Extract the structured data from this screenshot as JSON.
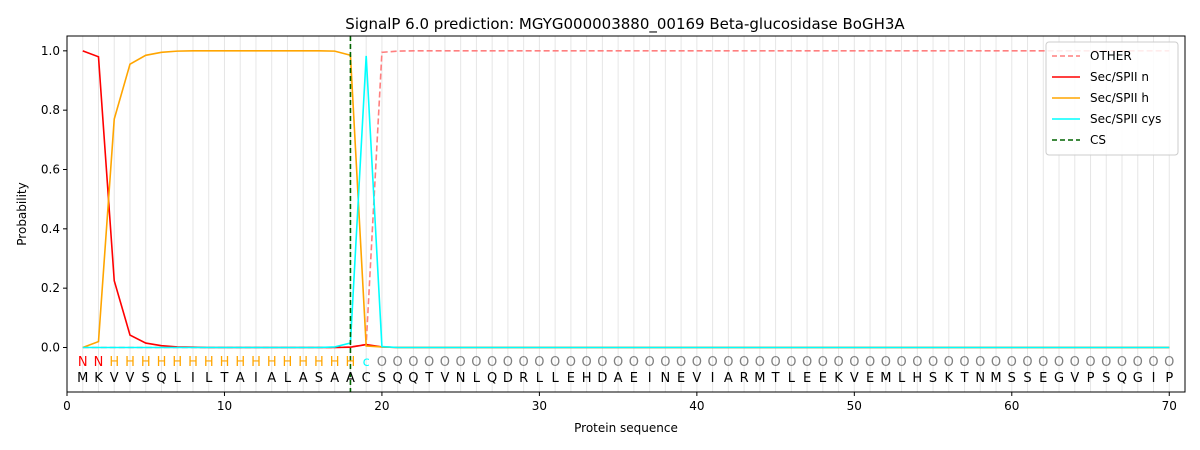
{
  "chart_data": {
    "type": "line",
    "title": "SignalP 6.0 prediction: MGYG000003880_00169 Beta-glucosidase BoGH3A",
    "xlabel": "Protein sequence",
    "ylabel": "Probability",
    "xlim": [
      0,
      71
    ],
    "ylim": [
      -0.15,
      1.05
    ],
    "xticks": [
      0,
      10,
      20,
      30,
      40,
      50,
      60,
      70
    ],
    "yticks": [
      0.0,
      0.2,
      0.4,
      0.6,
      0.8,
      1.0
    ],
    "grid": "vertical lines at each residue position",
    "legend_position": "top-right",
    "sequence": [
      "M",
      "K",
      "V",
      "V",
      "S",
      "Q",
      "L",
      "I",
      "L",
      "T",
      "A",
      "I",
      "A",
      "L",
      "A",
      "S",
      "A",
      "A",
      "C",
      "S",
      "Q",
      "Q",
      "T",
      "V",
      "N",
      "L",
      "Q",
      "D",
      "R",
      "L",
      "L",
      "E",
      "H",
      "D",
      "A",
      "E",
      "I",
      "N",
      "E",
      "V",
      "I",
      "A",
      "R",
      "M",
      "T",
      "L",
      "E",
      "E",
      "K",
      "V",
      "E",
      "M",
      "L",
      "H",
      "S",
      "K",
      "T",
      "N",
      "M",
      "S",
      "S",
      "E",
      "G",
      "V",
      "P",
      "S",
      "Q",
      "G",
      "I",
      "P"
    ],
    "annotation": [
      "N",
      "N",
      "H",
      "H",
      "H",
      "H",
      "H",
      "H",
      "H",
      "H",
      "H",
      "H",
      "H",
      "H",
      "H",
      "H",
      "H",
      "H",
      "c",
      "O",
      "O",
      "O",
      "O",
      "O",
      "O",
      "O",
      "O",
      "O",
      "O",
      "O",
      "O",
      "O",
      "O",
      "O",
      "O",
      "O",
      "O",
      "O",
      "O",
      "O",
      "O",
      "O",
      "O",
      "O",
      "O",
      "O",
      "O",
      "O",
      "O",
      "O",
      "O",
      "O",
      "O",
      "O",
      "O",
      "O",
      "O",
      "O",
      "O",
      "O",
      "O",
      "O",
      "O",
      "O",
      "O",
      "O",
      "O",
      "O",
      "O",
      "O"
    ],
    "annotation_colors": {
      "N": "#ff0000",
      "H": "#ffa500",
      "c": "#00ffff",
      "O": "#808080"
    },
    "cs_position": 18,
    "series": [
      {
        "name": "OTHER",
        "color": "#ff7f7f",
        "style": "dashed",
        "values": [
          0,
          0,
          0,
          0,
          0,
          0,
          0,
          0,
          0,
          0,
          0,
          0,
          0,
          0,
          0,
          0,
          0,
          0.002,
          0.01,
          0.995,
          0.999,
          1,
          1,
          1,
          1,
          1,
          1,
          1,
          1,
          1,
          1,
          1,
          1,
          1,
          1,
          1,
          1,
          1,
          1,
          1,
          1,
          1,
          1,
          1,
          1,
          1,
          1,
          1,
          1,
          1,
          1,
          1,
          1,
          1,
          1,
          1,
          1,
          1,
          1,
          1,
          1,
          1,
          1,
          1,
          1,
          1,
          1,
          1,
          1,
          1
        ]
      },
      {
        "name": "Sec/SPII n",
        "color": "#ff0000",
        "style": "solid",
        "values": [
          1.0,
          0.98,
          0.225,
          0.042,
          0.015,
          0.006,
          0.002,
          0.001,
          0,
          0,
          0,
          0,
          0,
          0,
          0,
          0,
          0,
          0.001,
          0.01,
          0.002,
          0,
          0,
          0,
          0,
          0,
          0,
          0,
          0,
          0,
          0,
          0,
          0,
          0,
          0,
          0,
          0,
          0,
          0,
          0,
          0,
          0,
          0,
          0,
          0,
          0,
          0,
          0,
          0,
          0,
          0,
          0,
          0,
          0,
          0,
          0,
          0,
          0,
          0,
          0,
          0,
          0,
          0,
          0,
          0,
          0,
          0,
          0,
          0,
          0,
          0
        ]
      },
      {
        "name": "Sec/SPII h",
        "color": "#ffa500",
        "style": "solid",
        "values": [
          0,
          0.02,
          0.77,
          0.955,
          0.985,
          0.995,
          0.999,
          1,
          1,
          1,
          1,
          1,
          1,
          1,
          1,
          1,
          0.999,
          0.985,
          0.005,
          0.002,
          0,
          0,
          0,
          0,
          0,
          0,
          0,
          0,
          0,
          0,
          0,
          0,
          0,
          0,
          0,
          0,
          0,
          0,
          0,
          0,
          0,
          0,
          0,
          0,
          0,
          0,
          0,
          0,
          0,
          0,
          0,
          0,
          0,
          0,
          0,
          0,
          0,
          0,
          0,
          0,
          0,
          0,
          0,
          0,
          0,
          0,
          0,
          0,
          0,
          0
        ]
      },
      {
        "name": "Sec/SPII cys",
        "color": "#00ffff",
        "style": "solid",
        "values": [
          0,
          0,
          0,
          0,
          0,
          0,
          0,
          0,
          0,
          0,
          0,
          0,
          0,
          0,
          0,
          0,
          0.002,
          0.015,
          0.983,
          0.003,
          0,
          0,
          0,
          0,
          0,
          0,
          0,
          0,
          0,
          0,
          0,
          0,
          0,
          0,
          0,
          0,
          0,
          0,
          0,
          0,
          0,
          0,
          0,
          0,
          0,
          0,
          0,
          0,
          0,
          0,
          0,
          0,
          0,
          0,
          0,
          0,
          0,
          0,
          0,
          0,
          0,
          0,
          0,
          0,
          0,
          0,
          0,
          0,
          0,
          0
        ]
      },
      {
        "name": "CS",
        "color": "#006400",
        "style": "dashed-vertical",
        "values": []
      }
    ]
  }
}
